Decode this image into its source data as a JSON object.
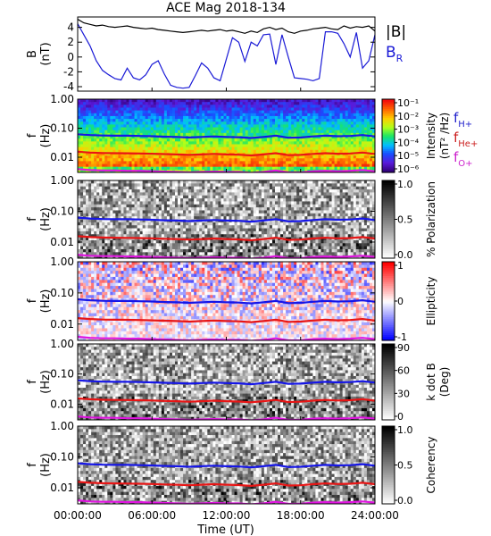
{
  "chart_data": {
    "title": "ACE Mag 2018-134",
    "xlabel": "Time (UT)",
    "x_tick_labels": [
      "00:00:00",
      "06:00:00",
      "12:00:00",
      "18:00:00",
      "24:00:00"
    ],
    "x_ticks_hours": [
      0,
      6,
      12,
      18,
      24
    ],
    "x_range_hours": [
      0,
      24
    ],
    "panels": [
      {
        "type": "line",
        "ylabel": "B",
        "yunit": "(nT)",
        "ylim": [
          -4.6,
          5.4
        ],
        "y_ticks": [
          -4,
          -2,
          0,
          2,
          4
        ],
        "y_tick_labels": [
          "-4",
          "-2",
          "0",
          "2",
          "4"
        ],
        "legend": [
          {
            "label": "|B|",
            "color": "#000000"
          },
          {
            "label": "B",
            "sub": "R",
            "color": "#1a1ad6"
          }
        ],
        "series": [
          {
            "name": "|B|",
            "color": "#000000",
            "x": [
              0,
              0.5,
              1,
              1.5,
              2,
              2.5,
              3,
              3.5,
              4,
              4.5,
              5,
              5.5,
              6,
              6.5,
              7,
              7.5,
              8,
              8.5,
              9,
              9.5,
              10,
              10.5,
              11,
              11.5,
              12,
              12.5,
              13,
              13.5,
              14,
              14.5,
              15,
              15.5,
              16,
              16.5,
              17,
              17.5,
              18,
              18.5,
              19,
              19.5,
              20,
              20.5,
              21,
              21.5,
              22,
              22.5,
              23,
              23.5,
              24
            ],
            "y": [
              5.1,
              4.6,
              4.4,
              4.2,
              4.3,
              4.1,
              4.0,
              4.1,
              4.2,
              4.0,
              3.9,
              3.8,
              3.9,
              3.7,
              3.6,
              3.5,
              3.4,
              3.3,
              3.4,
              3.5,
              3.6,
              3.5,
              3.6,
              3.7,
              3.5,
              3.6,
              3.4,
              3.2,
              3.5,
              3.3,
              3.8,
              4.0,
              3.7,
              3.9,
              3.4,
              3.2,
              3.5,
              3.6,
              3.8,
              3.9,
              4.0,
              3.8,
              3.7,
              4.2,
              3.9,
              4.1,
              4.0,
              4.2,
              3.5
            ]
          },
          {
            "name": "B_R",
            "color": "#1a1ad6",
            "x": [
              0,
              0.5,
              1,
              1.5,
              2,
              2.5,
              3,
              3.5,
              4,
              4.5,
              5,
              5.5,
              6,
              6.5,
              7,
              7.5,
              8,
              8.5,
              9,
              9.5,
              10,
              10.5,
              11,
              11.5,
              12,
              12.5,
              13,
              13.5,
              14,
              14.5,
              15,
              15.5,
              16,
              16.5,
              17,
              17.5,
              18,
              18.5,
              19,
              19.5,
              20,
              20.5,
              21,
              21.5,
              22,
              22.5,
              23,
              23.5,
              24
            ],
            "y": [
              4.5,
              3.0,
              1.5,
              -0.5,
              -1.8,
              -2.4,
              -2.9,
              -3.1,
              -1.5,
              -2.8,
              -3.1,
              -2.4,
              -1.0,
              -0.5,
              -2.3,
              -3.8,
              -4.1,
              -4.2,
              -4.1,
              -2.5,
              -0.8,
              -1.5,
              -2.8,
              -3.2,
              -0.3,
              2.6,
              2.0,
              -0.6,
              2.0,
              1.5,
              3.0,
              3.1,
              -1.0,
              3.0,
              0.0,
              -2.8,
              -2.9,
              -3.0,
              -3.2,
              -2.9,
              3.4,
              3.4,
              3.2,
              1.8,
              0.0,
              3.3,
              -1.5,
              -0.5,
              3.0
            ]
          }
        ]
      },
      {
        "type": "heatmap",
        "ylabel": "f",
        "yunit": "(Hz)",
        "ylim": [
          0.003,
          1.0
        ],
        "y_scale": "log",
        "y_ticks": [
          1.0,
          0.1,
          0.01
        ],
        "y_tick_labels": [
          "1.00",
          "0.10",
          "0.01"
        ],
        "color_scale": "rainbow",
        "colorbar": {
          "label": "Intensity",
          "unit": "(nT² /Hz)",
          "ticks": [
            "10⁻¹",
            "10⁻²",
            "10⁻³",
            "10⁻⁴",
            "10⁻⁵",
            "10⁻⁶"
          ],
          "range": [
            -6.5,
            -0.5
          ],
          "scale": "log"
        },
        "legend": [
          {
            "label": "f",
            "sub": "H+",
            "color": "#2222cc"
          },
          {
            "label": "f",
            "sub": "He+",
            "color": "#cc2222"
          },
          {
            "label": "f",
            "sub": "O+",
            "color": "#cc22cc"
          }
        ]
      },
      {
        "type": "heatmap",
        "ylabel": "f",
        "yunit": "(Hz)",
        "ylim": [
          0.003,
          1.0
        ],
        "y_scale": "log",
        "y_ticks": [
          1.0,
          0.1,
          0.01
        ],
        "y_tick_labels": [
          "1.00",
          "0.10",
          "0.01"
        ],
        "color_scale": "gray",
        "colorbar": {
          "label": "% Polarization",
          "unit": "",
          "ticks": [
            "1.0",
            "0.5",
            "0.0"
          ],
          "range": [
            0,
            1
          ]
        }
      },
      {
        "type": "heatmap",
        "ylabel": "f",
        "yunit": "(Hz)",
        "ylim": [
          0.003,
          1.0
        ],
        "y_scale": "log",
        "y_ticks": [
          1.0,
          0.1,
          0.01
        ],
        "y_tick_labels": [
          "1.00",
          "0.10",
          "0.01"
        ],
        "color_scale": "bluewhitered",
        "colorbar": {
          "label": "Ellipticity",
          "unit": "",
          "ticks": [
            "1",
            "0",
            "-1"
          ],
          "range": [
            -1,
            1
          ]
        }
      },
      {
        "type": "heatmap",
        "ylabel": "f",
        "yunit": "(Hz)",
        "ylim": [
          0.003,
          1.0
        ],
        "y_scale": "log",
        "y_ticks": [
          1.0,
          0.1,
          0.01
        ],
        "y_tick_labels": [
          "1.00",
          "0.10",
          "0.01"
        ],
        "color_scale": "gray",
        "colorbar": {
          "label": "k dot B",
          "unit": "(Deg)",
          "ticks": [
            "90",
            "60",
            "30",
            "0"
          ],
          "range": [
            0,
            90
          ]
        }
      },
      {
        "type": "heatmap",
        "ylabel": "f",
        "yunit": "(Hz)",
        "ylim": [
          0.003,
          1.0
        ],
        "y_scale": "log",
        "y_ticks": [
          1.0,
          0.1,
          0.01
        ],
        "y_tick_labels": [
          "1.00",
          "0.10",
          "0.01"
        ],
        "color_scale": "gray",
        "colorbar": {
          "label": "Coherency",
          "unit": "",
          "ticks": [
            "1.0",
            "0.5",
            "0.0"
          ],
          "range": [
            0,
            1
          ]
        }
      }
    ],
    "gyrofrequency_lines": [
      {
        "name": "fH+",
        "color": "#1515e8",
        "hours": [
          0,
          1,
          2,
          3,
          4,
          5,
          6,
          7,
          8,
          9,
          10,
          11,
          12,
          13,
          14,
          15,
          16,
          17,
          18,
          19,
          20,
          21,
          22,
          23,
          24
        ],
        "freq_hz": [
          0.062,
          0.058,
          0.056,
          0.055,
          0.055,
          0.054,
          0.053,
          0.051,
          0.05,
          0.048,
          0.05,
          0.052,
          0.05,
          0.049,
          0.046,
          0.05,
          0.055,
          0.047,
          0.048,
          0.052,
          0.055,
          0.053,
          0.054,
          0.058,
          0.052
        ]
      },
      {
        "name": "fHe+",
        "color": "#e81515",
        "hours": [
          0,
          1,
          2,
          3,
          4,
          5,
          6,
          7,
          8,
          9,
          10,
          11,
          12,
          13,
          14,
          15,
          16,
          17,
          18,
          19,
          20,
          21,
          22,
          23,
          24
        ],
        "freq_hz": [
          0.0155,
          0.0145,
          0.014,
          0.0138,
          0.0137,
          0.0135,
          0.0132,
          0.0128,
          0.0125,
          0.012,
          0.0125,
          0.013,
          0.0125,
          0.0122,
          0.0115,
          0.0125,
          0.0138,
          0.0118,
          0.012,
          0.013,
          0.0138,
          0.0132,
          0.0135,
          0.0145,
          0.013
        ]
      },
      {
        "name": "fO+",
        "color": "#e015e0",
        "hours": [
          0,
          1,
          2,
          3,
          4,
          5,
          6,
          7,
          8,
          9,
          10,
          11,
          12,
          13,
          14,
          15,
          16,
          17,
          18,
          19,
          20,
          21,
          22,
          23,
          24
        ],
        "freq_hz": [
          0.0039,
          0.0036,
          0.0035,
          0.0035,
          0.0034,
          0.0034,
          0.0033,
          0.0032,
          0.0031,
          0.003,
          0.0031,
          0.0032,
          0.0031,
          0.0031,
          0.0029,
          0.0031,
          0.0035,
          0.003,
          0.003,
          0.0033,
          0.0034,
          0.0033,
          0.0034,
          0.0036,
          0.0033
        ]
      }
    ]
  }
}
